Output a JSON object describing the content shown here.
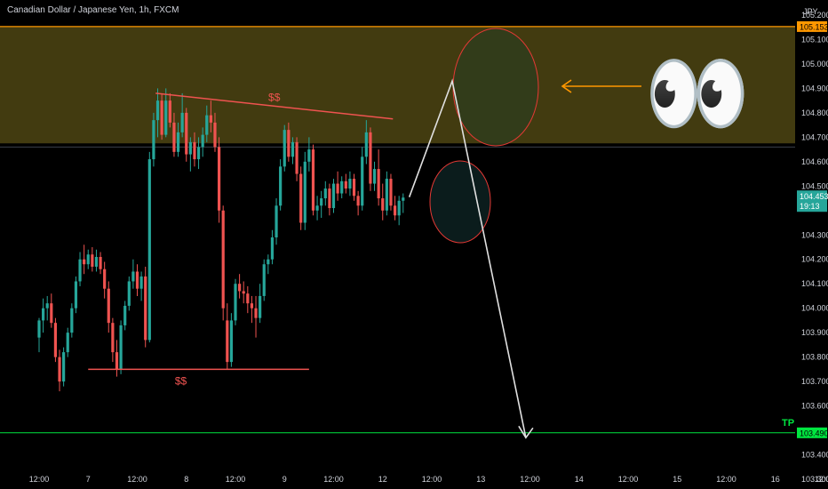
{
  "header": {
    "title": "Canadian Dollar / Japanese Yen, 1h, FXCM"
  },
  "chart_data": {
    "type": "candlestick",
    "currency": "JPY",
    "ylim": [
      103.3,
      105.24
    ],
    "y_ticks": [
      "105.200",
      "105.100",
      "105.000",
      "104.900",
      "104.800",
      "104.700",
      "104.600",
      "104.500",
      "104.300",
      "104.200",
      "104.100",
      "104.000",
      "103.900",
      "103.800",
      "103.700",
      "103.600",
      "103.400",
      "103.300"
    ],
    "x_ticks": [
      {
        "label": "12:00",
        "t": 0
      },
      {
        "label": "7",
        "t": 12
      },
      {
        "label": "12:00",
        "t": 24
      },
      {
        "label": "8",
        "t": 36
      },
      {
        "label": "12:00",
        "t": 48
      },
      {
        "label": "9",
        "t": 60
      },
      {
        "label": "12:00",
        "t": 72
      },
      {
        "label": "12",
        "t": 84
      },
      {
        "label": "12:00",
        "t": 96
      },
      {
        "label": "13",
        "t": 108
      },
      {
        "label": "12:00",
        "t": 120
      },
      {
        "label": "14",
        "t": 132
      },
      {
        "label": "12:00",
        "t": 144
      },
      {
        "label": "15",
        "t": 156
      },
      {
        "label": "12:00",
        "t": 168
      },
      {
        "label": "16",
        "t": 180
      },
      {
        "label": "12:00",
        "t": 192
      }
    ],
    "last_price": {
      "value": 104.453,
      "label": "104.453",
      "countdown": "19:13",
      "color": "#26a69a"
    },
    "resistance_line": {
      "value": 105.153,
      "label": "105.153",
      "color": "#ff9800"
    },
    "tp_line": {
      "value": 103.49,
      "label": "103.490",
      "name": "TP",
      "color": "#00e640"
    },
    "zone": {
      "top": 105.153,
      "bottom": 104.675,
      "color": "#5c5216"
    },
    "zone_bottom_line": 104.66,
    "annotations": {
      "top_label": "$$",
      "bottom_label": "$$",
      "eyes": "👀",
      "top_trendline": [
        {
          "t": 28.5,
          "v": 104.88
        },
        {
          "t": 86.5,
          "v": 104.775
        }
      ],
      "bottom_level": {
        "t1": 12,
        "t2": 66,
        "v": 103.75
      },
      "path": [
        {
          "t": 90.5,
          "v": 104.455
        },
        {
          "t": 101,
          "v": 104.93
        },
        {
          "t": 119,
          "v": 103.47
        }
      ]
    },
    "candles": [
      [
        103.88,
        103.96,
        103.82,
        103.95
      ],
      [
        103.95,
        104.04,
        103.9,
        104.0
      ],
      [
        104.0,
        104.05,
        103.95,
        104.02
      ],
      [
        104.02,
        104.06,
        103.92,
        103.94
      ],
      [
        103.94,
        103.96,
        103.78,
        103.8
      ],
      [
        103.8,
        103.83,
        103.66,
        103.7
      ],
      [
        103.7,
        103.84,
        103.68,
        103.82
      ],
      [
        103.82,
        103.92,
        103.8,
        103.9
      ],
      [
        103.9,
        104.02,
        103.88,
        104.0
      ],
      [
        104.0,
        104.13,
        103.98,
        104.11
      ],
      [
        104.11,
        104.23,
        104.09,
        104.2
      ],
      [
        104.2,
        104.26,
        104.14,
        104.18
      ],
      [
        104.18,
        104.24,
        104.16,
        104.22
      ],
      [
        104.22,
        104.25,
        104.15,
        104.17
      ],
      [
        104.17,
        104.24,
        104.15,
        104.21
      ],
      [
        104.21,
        104.23,
        104.14,
        104.16
      ],
      [
        104.16,
        104.19,
        104.04,
        104.08
      ],
      [
        104.08,
        104.11,
        103.9,
        103.94
      ],
      [
        103.94,
        103.96,
        103.78,
        103.82
      ],
      [
        103.82,
        103.87,
        103.72,
        103.75
      ],
      [
        103.75,
        103.95,
        103.73,
        103.93
      ],
      [
        103.93,
        104.03,
        103.91,
        104.01
      ],
      [
        104.01,
        104.13,
        103.99,
        104.11
      ],
      [
        104.11,
        104.2,
        104.08,
        104.15
      ],
      [
        104.15,
        104.18,
        104.05,
        104.08
      ],
      [
        104.08,
        104.15,
        104.03,
        104.13
      ],
      [
        104.13,
        104.17,
        103.84,
        103.87
      ],
      [
        103.87,
        104.64,
        103.86,
        104.61
      ],
      [
        104.61,
        104.8,
        104.58,
        104.77
      ],
      [
        104.77,
        104.9,
        104.7,
        104.85
      ],
      [
        104.85,
        104.88,
        104.69,
        104.71
      ],
      [
        104.71,
        104.9,
        104.7,
        104.85
      ],
      [
        104.85,
        104.88,
        104.74,
        104.76
      ],
      [
        104.76,
        104.8,
        104.62,
        104.64
      ],
      [
        104.64,
        104.76,
        104.62,
        104.72
      ],
      [
        104.72,
        104.88,
        104.7,
        104.8
      ],
      [
        104.8,
        104.82,
        104.6,
        104.63
      ],
      [
        104.63,
        104.7,
        104.56,
        104.68
      ],
      [
        104.68,
        104.72,
        104.58,
        104.61
      ],
      [
        104.61,
        104.7,
        104.57,
        104.66
      ],
      [
        104.66,
        104.74,
        104.62,
        104.71
      ],
      [
        104.71,
        104.83,
        104.68,
        104.79
      ],
      [
        104.79,
        104.85,
        104.72,
        104.76
      ],
      [
        104.76,
        104.8,
        104.64,
        104.66
      ],
      [
        104.66,
        104.7,
        104.35,
        104.4
      ],
      [
        104.4,
        104.42,
        103.95,
        104.0
      ],
      [
        103.95,
        104.02,
        103.75,
        103.78
      ],
      [
        103.78,
        103.98,
        103.76,
        103.95
      ],
      [
        103.95,
        104.12,
        103.93,
        104.1
      ],
      [
        104.1,
        104.14,
        104.04,
        104.07
      ],
      [
        104.07,
        104.11,
        104.02,
        104.06
      ],
      [
        104.06,
        104.09,
        103.98,
        104.02
      ],
      [
        104.02,
        104.05,
        103.94,
        104.0
      ],
      [
        104.0,
        104.05,
        103.88,
        103.96
      ],
      [
        103.96,
        104.1,
        103.94,
        104.05
      ],
      [
        104.05,
        104.2,
        104.03,
        104.18
      ],
      [
        104.18,
        104.22,
        104.14,
        104.2
      ],
      [
        104.2,
        104.32,
        104.18,
        104.29
      ],
      [
        104.29,
        104.45,
        104.26,
        104.42
      ],
      [
        104.42,
        104.61,
        104.4,
        104.58
      ],
      [
        104.58,
        104.75,
        104.56,
        104.73
      ],
      [
        104.73,
        104.76,
        104.6,
        104.62
      ],
      [
        104.62,
        104.7,
        104.59,
        104.68
      ],
      [
        104.68,
        104.7,
        104.52,
        104.55
      ],
      [
        104.55,
        104.58,
        104.32,
        104.35
      ],
      [
        104.35,
        104.64,
        104.32,
        104.6
      ],
      [
        104.6,
        104.7,
        104.56,
        104.65
      ],
      [
        104.65,
        104.67,
        104.38,
        104.4
      ],
      [
        104.4,
        104.46,
        104.36,
        104.42
      ],
      [
        104.42,
        104.48,
        104.37,
        104.45
      ],
      [
        104.45,
        104.52,
        104.42,
        104.49
      ],
      [
        104.49,
        104.51,
        104.38,
        104.41
      ],
      [
        104.41,
        104.53,
        104.39,
        104.51
      ],
      [
        104.51,
        104.56,
        104.44,
        104.47
      ],
      [
        104.47,
        104.54,
        104.45,
        104.52
      ],
      [
        104.52,
        104.55,
        104.47,
        104.49
      ],
      [
        104.49,
        104.56,
        104.46,
        104.53
      ],
      [
        104.53,
        104.55,
        104.44,
        104.46
      ],
      [
        104.46,
        104.48,
        104.38,
        104.42
      ],
      [
        104.42,
        104.66,
        104.4,
        104.62
      ],
      [
        104.62,
        104.77,
        104.59,
        104.72
      ],
      [
        104.72,
        104.74,
        104.48,
        104.51
      ],
      [
        104.51,
        104.6,
        104.48,
        104.57
      ],
      [
        104.57,
        104.65,
        104.42,
        104.45
      ],
      [
        104.45,
        104.51,
        104.36,
        104.4
      ],
      [
        104.4,
        104.56,
        104.38,
        104.53
      ],
      [
        104.53,
        104.55,
        104.4,
        104.42
      ],
      [
        104.42,
        104.46,
        104.36,
        104.38
      ],
      [
        104.38,
        104.46,
        104.34,
        104.44
      ],
      [
        104.44,
        104.47,
        104.39,
        104.453
      ]
    ]
  }
}
